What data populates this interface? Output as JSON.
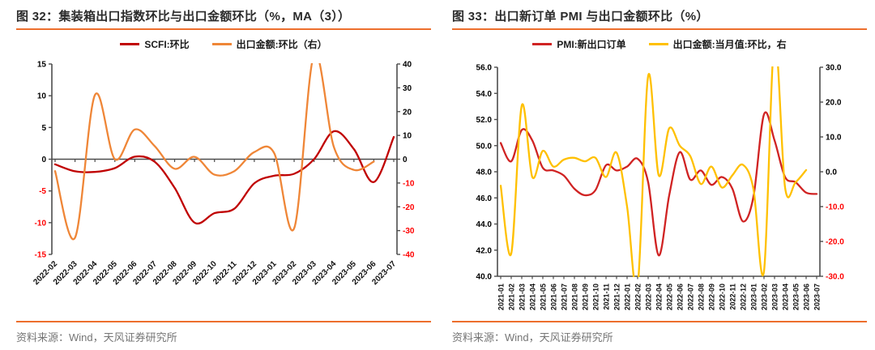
{
  "accent_rule_color": "#ED6F2D",
  "negative_tick_color": "#FF0000",
  "positive_tick_color": "#000000",
  "axis_color": "#4d4d4d",
  "figures": [
    {
      "title": "图 32：集装箱出口指数环比与出口金额环比（%，MA（3））",
      "source": "资料来源：Wind，天风证券研究所",
      "legend": [
        {
          "label": "SCFI:环比",
          "color": "#C00000"
        },
        {
          "label": "出口金额:环比（右）",
          "color": "#EF8637"
        }
      ],
      "chart_data": {
        "type": "line",
        "categories": [
          "2022-02",
          "2022-03",
          "2022-04",
          "2022-05",
          "2022-06",
          "2022-07",
          "2022-08",
          "2022-09",
          "2022-10",
          "2022-11",
          "2022-12",
          "2023-01",
          "2023-02",
          "2023-03",
          "2023-04",
          "2023-05",
          "2023-06",
          "2023-07"
        ],
        "series": [
          {
            "name": "SCFI:环比",
            "axis": "left",
            "color": "#C00000",
            "values": [
              -0.8,
              -1.9,
              -2.0,
              -1.4,
              0.4,
              -0.4,
              -4.5,
              -10.0,
              -8.5,
              -7.8,
              -3.8,
              -2.6,
              -2.3,
              0.0,
              4.4,
              1.6,
              -3.6,
              3.5
            ]
          },
          {
            "name": "出口金额:环比（右）",
            "axis": "right",
            "color": "#EF8637",
            "values": [
              -5,
              -33,
              27,
              0,
              12.5,
              5.5,
              -4,
              1,
              -6.5,
              -5,
              3,
              2.5,
              -29,
              44,
              5,
              -4.5,
              -1,
              null
            ]
          }
        ],
        "left_axis": {
          "min": -15,
          "max": 15,
          "step": 5,
          "decimals": 0
        },
        "right_axis": {
          "min": -40,
          "max": 40,
          "step": 10,
          "decimals": 0
        },
        "x_axis_position": "zero",
        "x_label_rotation": -45,
        "grid": false,
        "legend_position": "top",
        "notes": "values beyond axis range are clipped at plot edge; orange series has no value for 2023-07"
      }
    },
    {
      "title": "图 33：出口新订单 PMI 与出口金额环比（%）",
      "source": "资料来源：Wind，天风证券研究所",
      "legend": [
        {
          "label": "PMI:新出口订单",
          "color": "#D02323"
        },
        {
          "label": "出口金额:当月值:环比，右",
          "color": "#FFC000"
        }
      ],
      "chart_data": {
        "type": "line",
        "categories": [
          "2021-01",
          "2021-02",
          "2021-03",
          "2021-04",
          "2021-05",
          "2021-06",
          "2021-07",
          "2021-08",
          "2021-09",
          "2021-10",
          "2021-11",
          "2021-12",
          "2022-01",
          "2022-02",
          "2022-03",
          "2022-04",
          "2022-05",
          "2022-06",
          "2022-07",
          "2022-08",
          "2022-09",
          "2022-10",
          "2022-11",
          "2022-12",
          "2023-01",
          "2023-02",
          "2023-03",
          "2023-04",
          "2023-05",
          "2023-06",
          "2023-07"
        ],
        "series": [
          {
            "name": "PMI:新出口订单",
            "axis": "left",
            "color": "#D02323",
            "values": [
              50.2,
              48.8,
              51.2,
              50.4,
              48.3,
              48.1,
              47.7,
              46.7,
              46.2,
              46.6,
              48.5,
              48.1,
              48.4,
              49.0,
              47.2,
              41.6,
              46.2,
              49.5,
              47.4,
              48.1,
              47.0,
              47.6,
              46.7,
              44.2,
              46.1,
              52.4,
              50.4,
              47.6,
              47.2,
              46.4,
              46.3
            ]
          },
          {
            "name": "出口金额:当月值:环比，右",
            "axis": "right",
            "color": "#FFC000",
            "values": [
              -4,
              -23.5,
              19,
              -1.5,
              6,
              1.5,
              3.5,
              4,
              3,
              4,
              -1.5,
              5.5,
              -10,
              -33,
              27.5,
              -1,
              12.5,
              7.5,
              4.5,
              -3.5,
              1.5,
              -4.5,
              -1,
              2,
              -5,
              -28.5,
              38,
              -4.5,
              -3,
              0.5,
              null
            ]
          }
        ],
        "left_axis": {
          "min": 40,
          "max": 56,
          "step": 2,
          "decimals": 1
        },
        "right_axis": {
          "min": -30,
          "max": 30,
          "step": 10,
          "decimals": 1
        },
        "x_axis_position": "bottom",
        "x_label_rotation": -90,
        "grid": false,
        "legend_position": "top",
        "notes": "yellow spikes clipped at axis limits; yellow series has no value for 2023-07"
      }
    }
  ]
}
